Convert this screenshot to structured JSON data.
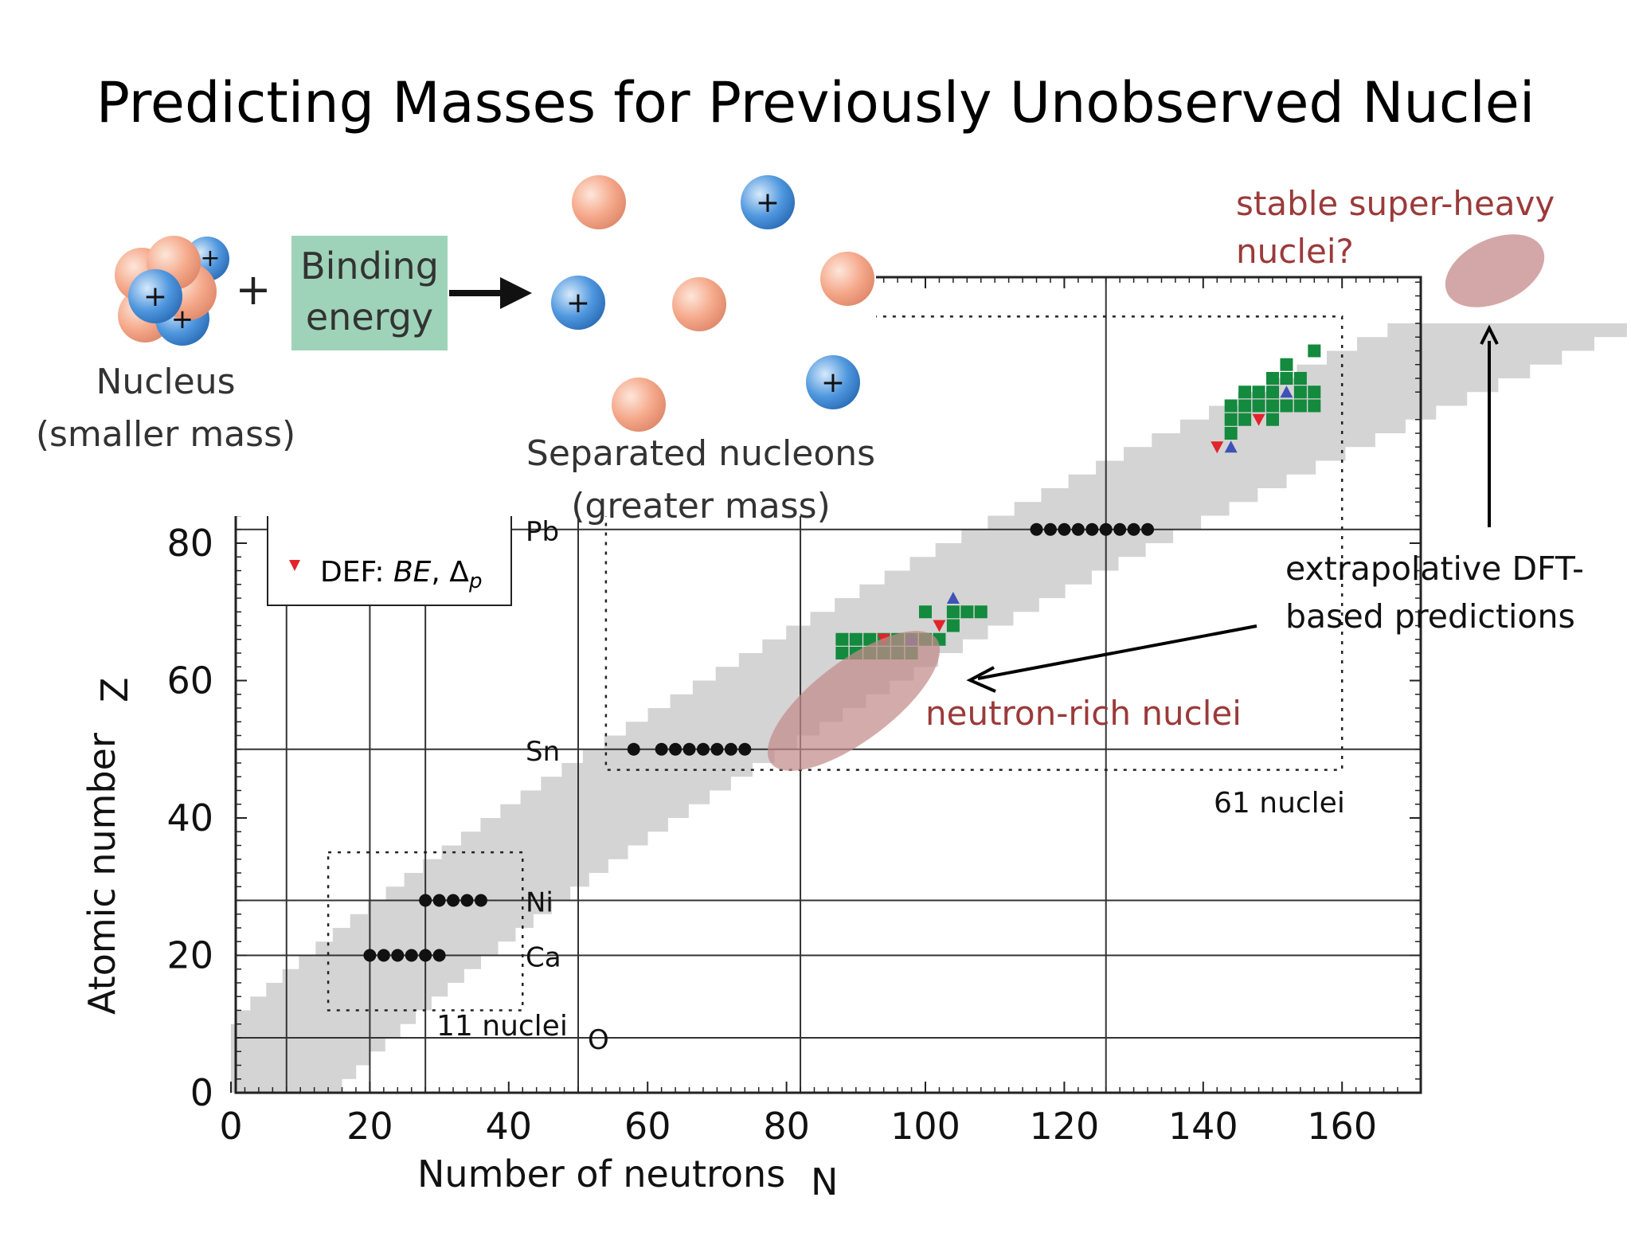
{
  "title": "Predicting Masses for Previously Unobserved Nuclei",
  "binding_diagram": {
    "nucleus_label": "Nucleus",
    "nucleus_sublabel": "(smaller mass)",
    "plus_sign": "+",
    "binding_energy_line1": "Binding",
    "binding_energy_line2": "energy",
    "separated_label": "Separated nucleons",
    "separated_sublabel": "(greater mass)",
    "proton_symbol": "+",
    "colors": {
      "neutron": "#f4a98c",
      "proton": "#4a90d9",
      "binding_box": "#9ed3b9"
    }
  },
  "annotations": {
    "superheavy_line1": "stable super-heavy",
    "superheavy_line2": "nuclei?",
    "dft_line1": "extrapolative DFT-",
    "dft_line2": "based predictions",
    "neutron_rich": "neutron-rich nuclei",
    "region_61": "61 nuclei",
    "region_11": "11 nuclei",
    "colors": {
      "annotation_red": "#9b3a3a",
      "blob": "#c48a8a"
    }
  },
  "legend": {
    "entry_prefix": "DEF: ",
    "entry_be": "BE",
    "entry_sep": ", ",
    "entry_delta": "Δ",
    "entry_sub": "p"
  },
  "chart_data": {
    "type": "scatter",
    "xlabel": "Number of neutrons",
    "xlabel_symbol": "N",
    "ylabel": "Atomic number",
    "ylabel_symbol": "Z",
    "xlim": [
      0,
      170
    ],
    "ylim": [
      0,
      84
    ],
    "x_ticks": [
      0,
      20,
      40,
      60,
      80,
      100,
      120,
      140,
      160
    ],
    "y_ticks": [
      0,
      20,
      40,
      60,
      80
    ],
    "magic_lines": [
      {
        "label": "O",
        "z": 8
      },
      {
        "label": "Ca",
        "z": 20
      },
      {
        "label": "Ni",
        "z": 28
      },
      {
        "label": "Sn",
        "z": 50
      },
      {
        "label": "Pb",
        "z": 82
      }
    ],
    "magic_neutron_lines": [
      8,
      20,
      28,
      50,
      82,
      126
    ],
    "chains": [
      {
        "z": 20,
        "n": [
          20,
          22,
          24,
          26,
          28,
          30
        ]
      },
      {
        "z": 28,
        "n": [
          28,
          30,
          32,
          34,
          36
        ]
      },
      {
        "z": 50,
        "n": [
          58,
          62,
          64,
          66,
          68,
          70,
          72,
          74
        ]
      },
      {
        "z": 82,
        "n": [
          116,
          118,
          120,
          122,
          124,
          126,
          128,
          130,
          132
        ]
      }
    ],
    "green_squares": [
      {
        "n": 88,
        "z": 64
      },
      {
        "n": 90,
        "z": 64
      },
      {
        "n": 92,
        "z": 64
      },
      {
        "n": 94,
        "z": 64
      },
      {
        "n": 96,
        "z": 64
      },
      {
        "n": 98,
        "z": 64
      },
      {
        "n": 88,
        "z": 66
      },
      {
        "n": 90,
        "z": 66
      },
      {
        "n": 92,
        "z": 66
      },
      {
        "n": 94,
        "z": 66
      },
      {
        "n": 96,
        "z": 66
      },
      {
        "n": 98,
        "z": 66
      },
      {
        "n": 100,
        "z": 66
      },
      {
        "n": 102,
        "z": 66
      },
      {
        "n": 100,
        "z": 70
      },
      {
        "n": 104,
        "z": 68
      },
      {
        "n": 106,
        "z": 70
      },
      {
        "n": 108,
        "z": 70
      },
      {
        "n": 104,
        "z": 70
      },
      {
        "n": 144,
        "z": 96
      },
      {
        "n": 144,
        "z": 98
      },
      {
        "n": 144,
        "z": 100
      },
      {
        "n": 146,
        "z": 98
      },
      {
        "n": 146,
        "z": 100
      },
      {
        "n": 146,
        "z": 102
      },
      {
        "n": 148,
        "z": 100
      },
      {
        "n": 148,
        "z": 102
      },
      {
        "n": 150,
        "z": 98
      },
      {
        "n": 150,
        "z": 100
      },
      {
        "n": 150,
        "z": 102
      },
      {
        "n": 150,
        "z": 104
      },
      {
        "n": 152,
        "z": 100
      },
      {
        "n": 152,
        "z": 104
      },
      {
        "n": 152,
        "z": 106
      },
      {
        "n": 154,
        "z": 100
      },
      {
        "n": 154,
        "z": 102
      },
      {
        "n": 154,
        "z": 104
      },
      {
        "n": 156,
        "z": 100
      },
      {
        "n": 156,
        "z": 102
      },
      {
        "n": 156,
        "z": 108
      }
    ],
    "red_triangles": [
      {
        "n": 94,
        "z": 66
      },
      {
        "n": 102,
        "z": 68
      },
      {
        "n": 142,
        "z": 94
      },
      {
        "n": 148,
        "z": 98
      }
    ],
    "blue_triangles": [
      {
        "n": 98,
        "z": 66
      },
      {
        "n": 104,
        "z": 72
      },
      {
        "n": 144,
        "z": 94
      },
      {
        "n": 152,
        "z": 102
      }
    ],
    "dashed_regions": [
      {
        "label": "61 nuclei",
        "n": [
          54,
          160
        ],
        "z": [
          47,
          113
        ]
      },
      {
        "label": "11 nuclei",
        "n": [
          14,
          42
        ],
        "z": [
          12,
          35
        ]
      }
    ],
    "colors": {
      "nuclide_band": "#d4d4d4",
      "chain_dot": "#111111",
      "green": "#138a3d",
      "red_triangle": "#e0252b",
      "blue_triangle": "#3f52b5"
    }
  }
}
